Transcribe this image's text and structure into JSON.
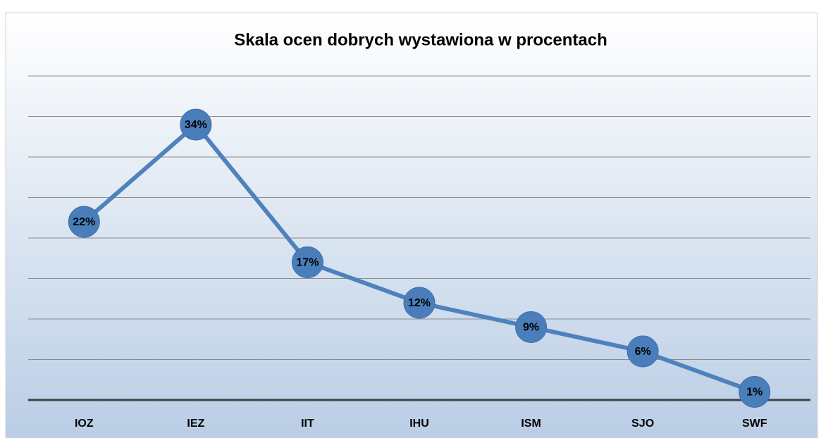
{
  "chart_data": {
    "type": "line",
    "title": "Skala ocen dobrych wystawiona w procentach",
    "categories": [
      "IOZ",
      "IEZ",
      "IIT",
      "IHU",
      "ISM",
      "SJO",
      "SWF"
    ],
    "values": [
      22,
      34,
      17,
      12,
      9,
      6,
      1
    ],
    "value_labels": [
      "22%",
      "34%",
      "17%",
      "12%",
      "9%",
      "6%",
      "1%"
    ],
    "color": "#4f81bd",
    "ylim": [
      0,
      40
    ],
    "yticks": [
      0,
      5,
      10,
      15,
      20,
      25,
      30,
      35,
      40
    ],
    "grid": true
  }
}
